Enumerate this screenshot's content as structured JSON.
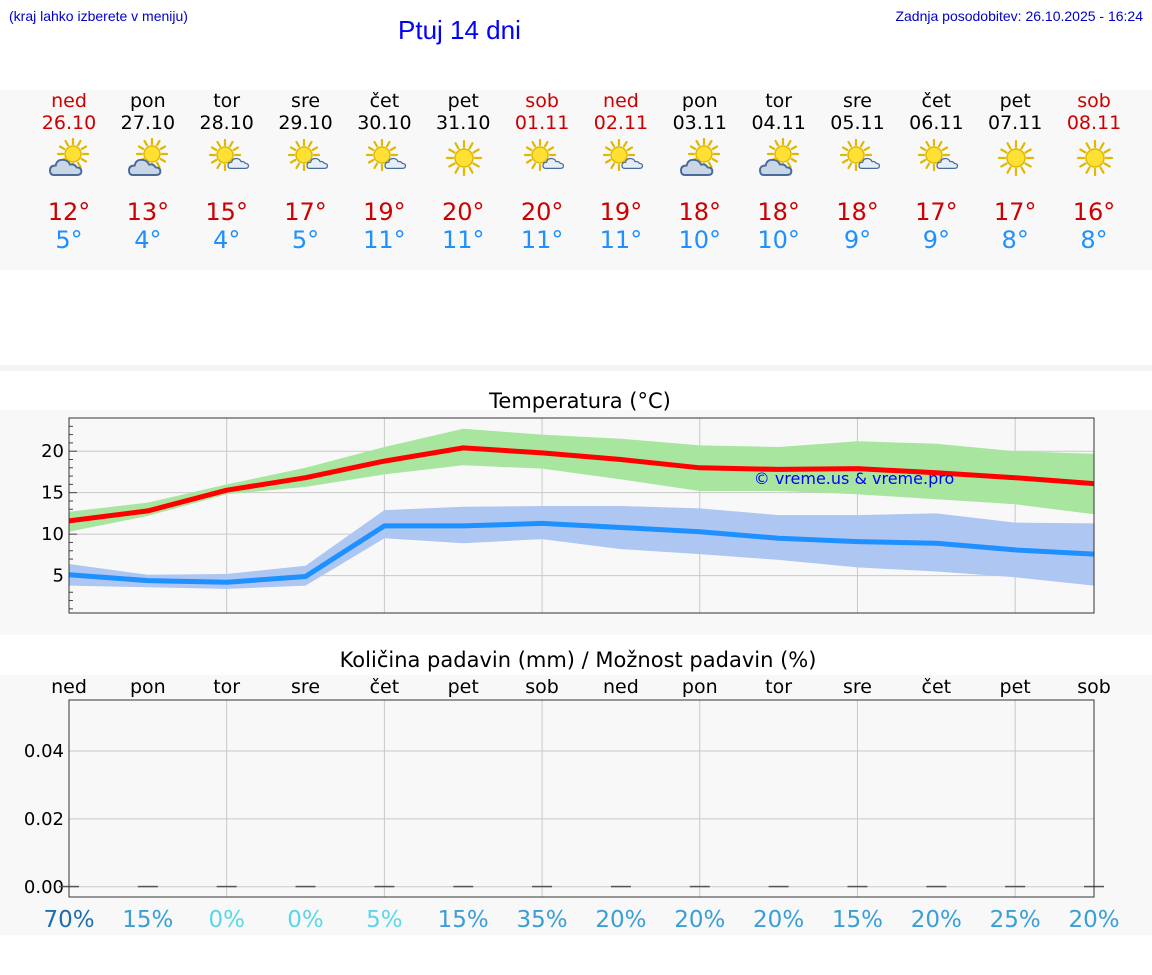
{
  "header": {
    "hint": "(kraj lahko izberete v meniju)",
    "title": "Ptuj 14 dni",
    "updated": "Zadnja posodobitev: 26.10.2025 - 16:24"
  },
  "colors": {
    "max_line": "#ff0000",
    "max_band": "#a8e6a0",
    "min_line": "#1e90ff",
    "min_band": "#aec6f2",
    "max_text": "#cc0000",
    "min_text": "#1e90ff",
    "pct_dark": "#1f6fb0",
    "pct_mid": "#3a9fd6",
    "pct_light": "#5cd6e8"
  },
  "forecast": [
    {
      "day": "ned",
      "date": "26.10",
      "weekend": true,
      "icon": "partly-cloudy-icon",
      "max": "12°",
      "min": "5°"
    },
    {
      "day": "pon",
      "date": "27.10",
      "weekend": false,
      "icon": "partly-cloudy-icon",
      "max": "13°",
      "min": "4°"
    },
    {
      "day": "tor",
      "date": "28.10",
      "weekend": false,
      "icon": "sun-small-cloud-icon",
      "max": "15°",
      "min": "4°"
    },
    {
      "day": "sre",
      "date": "29.10",
      "weekend": false,
      "icon": "sun-small-cloud-icon",
      "max": "17°",
      "min": "5°"
    },
    {
      "day": "čet",
      "date": "30.10",
      "weekend": false,
      "icon": "sun-small-cloud-icon",
      "max": "19°",
      "min": "11°"
    },
    {
      "day": "pet",
      "date": "31.10",
      "weekend": false,
      "icon": "sun-icon",
      "max": "20°",
      "min": "11°"
    },
    {
      "day": "sob",
      "date": "01.11",
      "weekend": true,
      "icon": "sun-small-cloud-icon",
      "max": "20°",
      "min": "11°"
    },
    {
      "day": "ned",
      "date": "02.11",
      "weekend": true,
      "icon": "sun-small-cloud-icon",
      "max": "19°",
      "min": "11°"
    },
    {
      "day": "pon",
      "date": "03.11",
      "weekend": false,
      "icon": "partly-cloudy-icon",
      "max": "18°",
      "min": "10°"
    },
    {
      "day": "tor",
      "date": "04.11",
      "weekend": false,
      "icon": "partly-cloudy-icon",
      "max": "18°",
      "min": "10°"
    },
    {
      "day": "sre",
      "date": "05.11",
      "weekend": false,
      "icon": "sun-small-cloud-icon",
      "max": "18°",
      "min": "9°"
    },
    {
      "day": "čet",
      "date": "06.11",
      "weekend": false,
      "icon": "sun-small-cloud-icon",
      "max": "17°",
      "min": "9°"
    },
    {
      "day": "pet",
      "date": "07.11",
      "weekend": false,
      "icon": "sun-icon",
      "max": "17°",
      "min": "8°"
    },
    {
      "day": "sob",
      "date": "08.11",
      "weekend": true,
      "icon": "sun-icon",
      "max": "16°",
      "min": "8°"
    }
  ],
  "chart_data": [
    {
      "type": "line",
      "title": "Temperatura (°C)",
      "xlabel": "",
      "ylabel": "",
      "ylim": [
        0.5,
        24
      ],
      "yticks": [
        5,
        10,
        15,
        20
      ],
      "grid": true,
      "annotation": "© vreme.us & vreme.pro",
      "x": [
        0,
        1,
        2,
        3,
        4,
        5,
        6,
        7,
        8,
        9,
        10,
        11,
        12,
        13
      ],
      "series": [
        {
          "name": "max",
          "values": [
            11.6,
            12.8,
            15.3,
            16.8,
            18.8,
            20.4,
            19.8,
            19.0,
            18.0,
            17.8,
            17.9,
            17.4,
            16.8,
            16.1
          ],
          "band_low": [
            10.3,
            12.2,
            14.8,
            15.7,
            17.2,
            18.3,
            17.9,
            16.6,
            15.2,
            15.2,
            14.8,
            14.2,
            13.6,
            12.4
          ],
          "band_high": [
            12.7,
            13.8,
            16.0,
            18.0,
            20.5,
            22.7,
            22.0,
            21.5,
            20.7,
            20.5,
            21.2,
            20.9,
            20.0,
            19.7
          ]
        },
        {
          "name": "min",
          "values": [
            5.1,
            4.4,
            4.2,
            4.9,
            11.0,
            11.0,
            11.3,
            10.8,
            10.3,
            9.5,
            9.1,
            8.9,
            8.1,
            7.6
          ],
          "band_low": [
            3.8,
            3.6,
            3.4,
            3.8,
            9.5,
            8.9,
            9.4,
            8.2,
            7.6,
            6.9,
            6.0,
            5.5,
            4.8,
            3.8
          ],
          "band_high": [
            6.4,
            5.1,
            5.2,
            6.2,
            12.9,
            13.3,
            13.4,
            13.4,
            13.1,
            12.3,
            12.3,
            12.5,
            11.4,
            11.3
          ]
        }
      ]
    },
    {
      "type": "bar",
      "title": "Količina padavin (mm) / Možnost padavin (%)",
      "xlabel": "",
      "ylabel": "",
      "ylim": [
        -0.003,
        0.055
      ],
      "yticks": [
        0.0,
        0.02,
        0.04
      ],
      "ytick_labels": [
        "0.00",
        "0.02",
        "0.04"
      ],
      "grid": true,
      "categories": [
        "ned",
        "pon",
        "tor",
        "sre",
        "čet",
        "pet",
        "sob",
        "ned",
        "pon",
        "tor",
        "sre",
        "čet",
        "pet",
        "sob"
      ],
      "values": [
        0,
        0,
        0,
        0,
        0,
        0,
        0,
        0,
        0,
        0,
        0,
        0,
        0,
        0
      ],
      "chance_pct": [
        70,
        15,
        0,
        0,
        5,
        15,
        35,
        20,
        20,
        20,
        15,
        20,
        25,
        20
      ],
      "chance_labels": [
        "70%",
        "15%",
        "0%",
        "0%",
        "5%",
        "15%",
        "35%",
        "20%",
        "20%",
        "20%",
        "15%",
        "20%",
        "25%",
        "20%"
      ]
    }
  ]
}
